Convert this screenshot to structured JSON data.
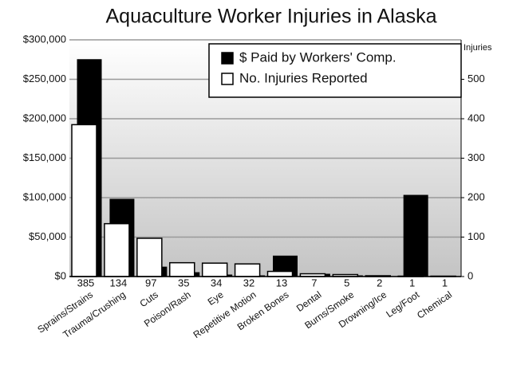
{
  "chart_data": {
    "type": "bar",
    "title": "Aquaculture Worker Injuries in Alaska",
    "y2_label": "Injuries",
    "categories": [
      "Sprains/Strains",
      "Trauma/Crushing",
      "Cuts",
      "Poison/Rash",
      "Eye",
      "Repetitive Motion",
      "Broken Bones",
      "Dental",
      "Burns/Smoke",
      "Drowning/Ice",
      "Leg/Foot",
      "Chemical"
    ],
    "series": [
      {
        "name": "$ Paid by Workers' Comp.",
        "color": "#000000",
        "axis": "y",
        "values": [
          275000,
          98000,
          12000,
          5000,
          2000,
          1000,
          26000,
          3000,
          1000,
          0,
          103000,
          0
        ]
      },
      {
        "name": "No. Injuries Reported",
        "color": "#ffffff",
        "axis": "y2",
        "values": [
          385,
          134,
          97,
          35,
          34,
          32,
          13,
          7,
          5,
          2,
          1,
          1
        ]
      }
    ],
    "ylim": [
      0,
      300000
    ],
    "yticks": [
      {
        "value": 0,
        "label": "$0"
      },
      {
        "value": 50000,
        "label": "$50,000"
      },
      {
        "value": 100000,
        "label": "$100,000"
      },
      {
        "value": 150000,
        "label": "$150,000"
      },
      {
        "value": 200000,
        "label": "$200,000"
      },
      {
        "value": 250000,
        "label": "$250,000"
      },
      {
        "value": 300000,
        "label": "$300,000"
      }
    ],
    "y2lim": [
      0,
      600
    ],
    "y2ticks": [
      0,
      100,
      200,
      300,
      400,
      500
    ],
    "grid": true,
    "legend": "top-right"
  }
}
